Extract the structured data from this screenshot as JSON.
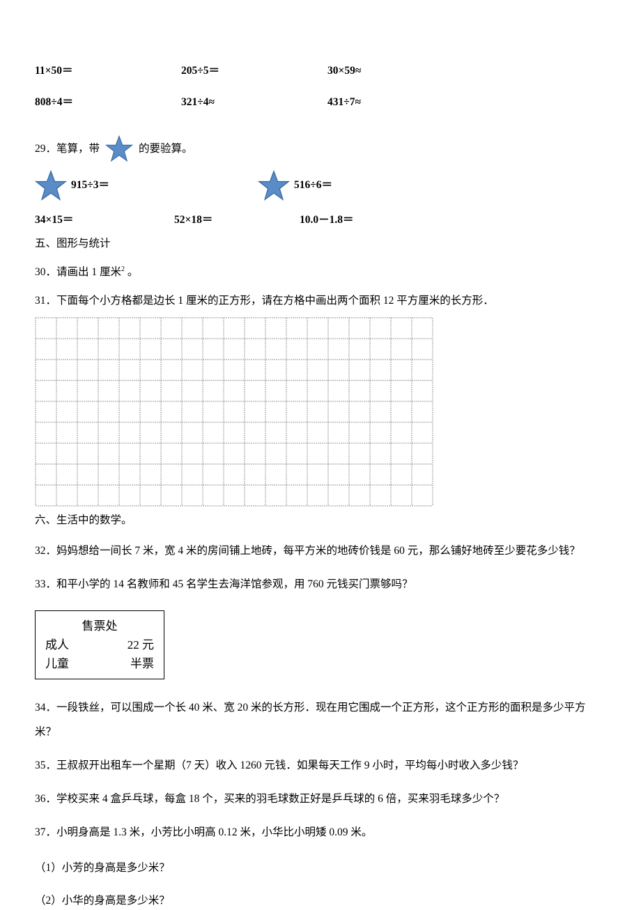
{
  "arith": {
    "r1c1": "11×50＝",
    "r1c2": "205÷5＝",
    "r1c3": "30×59≈",
    "r2c1": "808÷4＝",
    "r2c2": "321÷4≈",
    "r2c3": "431÷7≈"
  },
  "q29": {
    "label": "29．笔算，带",
    "suffix": "的要验算。"
  },
  "star_calc": {
    "left": "915÷3＝",
    "right": "516÷6＝"
  },
  "calc_row": {
    "c1": "34×15＝",
    "c2": "52×18＝",
    "c3": "10.0－1.8＝"
  },
  "section5": "五、图形与统计",
  "q30": {
    "prefix": "30．请画出 1 厘米",
    "sup": "2",
    "suffix": " 。"
  },
  "q31": "31．下面每个小方格都是边长 1 厘米的正方形，请在方格中画出两个面积 12 平方厘米的长方形．",
  "grid": {
    "cols": 19,
    "rows": 9,
    "cell_size": 30,
    "grid_color": "#999999",
    "bg_color": "#ffffff",
    "line_width": 1
  },
  "section6": "六、生活中的数学。",
  "q32": "32．妈妈想给一间长 7 米，宽 4 米的房间铺上地砖，每平方米的地砖价钱是 60 元，那么铺好地砖至少要花多少钱？",
  "q33": "33．和平小学的 14 名教师和 45 名学生去海洋馆参观，用 760 元钱买门票够吗？",
  "ticket": {
    "title": "售票处",
    "adult_label": "成人",
    "adult_price": "22 元",
    "child_label": "儿童",
    "child_price": "半票"
  },
  "q34": "34．一段铁丝，可以围成一个长 40 米、宽 20 米的长方形．现在用它围成一个正方形，这个正方形的面积是多少平方米？",
  "q35": "35．王叔叔开出租车一个星期（7 天）收入 1260 元钱．如果每天工作 9 小时，平均每小时收入多少钱？",
  "q36": "36．学校买来 4 盒乒乓球，每盒 18 个，买来的羽毛球数正好是乒乓球的 6 倍，买来羽毛球多少个？",
  "q37": "37．小明身高是 1.3 米，小芳比小明高 0.12 米，小华比小明矮 0.09 米。",
  "q37_1": "（1）小芳的身高是多少米？",
  "q37_2": "（2）小华的身高是多少米？",
  "star": {
    "fill": "#5a8cc8",
    "stroke": "#3b6ca8"
  }
}
